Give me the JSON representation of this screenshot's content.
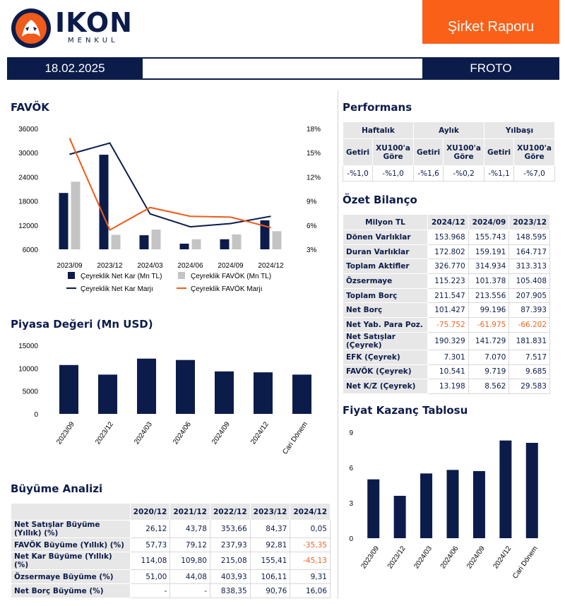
{
  "brand": {
    "name": "IKON",
    "sub": "MENKUL"
  },
  "header": {
    "report_label": "Şirket Raporu",
    "date": "18.02.2025",
    "ticker": "FROTO"
  },
  "colors": {
    "navy": "#0c1c4a",
    "orange": "#f05a1a",
    "gray": "#c4c4c4"
  },
  "favok": {
    "title": "FAVÖK",
    "chart_data": {
      "type": "bar",
      "categories": [
        "2023/09",
        "2023/12",
        "2024/03",
        "2024/06",
        "2024/09",
        "2024/12"
      ],
      "series": [
        {
          "name": "Çeyreklik Net Kar (Mn TL)",
          "type": "bar",
          "axis": "left",
          "values": [
            20000,
            29500,
            9500,
            7400,
            8500,
            13200
          ]
        },
        {
          "name": "Çeyreklik FAVÖK (Mn TL)",
          "type": "bar",
          "axis": "left",
          "values": [
            22800,
            9600,
            10900,
            8500,
            9700,
            10500
          ]
        },
        {
          "name": "Çeyreklik Net Kar Marjı",
          "type": "line",
          "axis": "right",
          "values": [
            14.8,
            16.2,
            7.4,
            5.8,
            6.2,
            7.1
          ]
        },
        {
          "name": "Çeyreklik FAVÖK Marjı",
          "type": "line",
          "axis": "right",
          "values": [
            16.8,
            5.4,
            8.2,
            7.1,
            7.0,
            5.7
          ]
        }
      ],
      "ylim_left": [
        6000,
        36000
      ],
      "yticks_left": [
        "36000",
        "30000",
        "24000",
        "18000",
        "12000",
        "6000"
      ],
      "ylim_right": [
        3,
        18
      ],
      "yticks_right": [
        "18%",
        "15%",
        "12%",
        "9%",
        "6%",
        "3%"
      ],
      "legend": "bottom"
    }
  },
  "piyasa": {
    "title": "Piyasa Değeri (Mn USD)",
    "chart_data": {
      "type": "bar",
      "categories": [
        "2023/09",
        "2023/12",
        "2024/03",
        "2024/06",
        "2024/09",
        "2024/12",
        "Cari Dönem"
      ],
      "values": [
        10700,
        8600,
        12100,
        11800,
        9300,
        9100,
        8600
      ],
      "ylim": [
        0,
        15000
      ],
      "yticks": [
        "15000",
        "10000",
        "5000",
        "0"
      ]
    }
  },
  "buyume": {
    "title": "Büyüme Analizi",
    "headers": [
      "2020/12",
      "2021/12",
      "2022/12",
      "2023/12",
      "2024/12"
    ],
    "rows": [
      {
        "label": "Net Satışlar Büyüme (Yıllık) (%)",
        "values": [
          "26,12",
          "43,78",
          "353,66",
          "84,37",
          "0,05"
        ]
      },
      {
        "label": "FAVÖK Büyüme (Yıllık) (%)",
        "values": [
          "57,73",
          "79,12",
          "237,93",
          "92,81",
          "-35,35"
        ]
      },
      {
        "label": "Net Kar Büyüme (Yıllık) (%)",
        "values": [
          "114,08",
          "109,80",
          "215,08",
          "155,41",
          "-45,13"
        ]
      },
      {
        "label": "Özsermaye Büyüme (%)",
        "values": [
          "51,00",
          "44,08",
          "403,93",
          "106,11",
          "9,31"
        ]
      },
      {
        "label": "Net Borç Büyüme (%)",
        "values": [
          "-",
          "-",
          "838,35",
          "90,76",
          "16,06"
        ]
      }
    ]
  },
  "performans": {
    "title": "Performans",
    "groups": [
      "Haftalık",
      "Aylık",
      "Yılbaşı"
    ],
    "sub": [
      "Getiri",
      "XU100'a Göre",
      "Getiri",
      "XU100'a Göre",
      "Getiri",
      "XU100'a Göre"
    ],
    "values": [
      "-%1,0",
      "-%1,0",
      "-%1,6",
      "-%0,2",
      "-%1,1",
      "-%7,0"
    ]
  },
  "bilanco": {
    "title": "Özet Bilanço",
    "headers": [
      "Milyon TL",
      "2024/12",
      "2024/09",
      "2023/12"
    ],
    "rows": [
      {
        "label": "Dönen Varlıklar",
        "values": [
          "153.968",
          "155.743",
          "148.595"
        ]
      },
      {
        "label": "Duran Varlıklar",
        "values": [
          "172.802",
          "159.191",
          "164.717"
        ]
      },
      {
        "label": "Toplam Aktifler",
        "values": [
          "326.770",
          "314.934",
          "313.313"
        ]
      },
      {
        "label": "Özsermaye",
        "values": [
          "115.223",
          "101.378",
          "105.408"
        ]
      },
      {
        "label": "Toplam Borç",
        "values": [
          "211.547",
          "213.556",
          "207.905"
        ]
      },
      {
        "label": "Net Borç",
        "values": [
          "101.427",
          "99.196",
          "87.393"
        ]
      },
      {
        "label": "Net Yab. Para Poz.",
        "values": [
          "-75.752",
          "-61.975",
          "-66.202"
        ]
      },
      {
        "label": "Net Satışlar (Çeyrek)",
        "values": [
          "190.329",
          "141.729",
          "181.831"
        ]
      },
      {
        "label": "EFK (Çeyrek)",
        "values": [
          "7.301",
          "7.070",
          "7.517"
        ]
      },
      {
        "label": "FAVÖK (Çeyrek)",
        "values": [
          "10.541",
          "9.719",
          "9.685"
        ]
      },
      {
        "label": "Net K/Z (Çeyrek)",
        "values": [
          "13.198",
          "8.562",
          "29.583"
        ]
      }
    ]
  },
  "fk": {
    "title": "Fiyat Kazanç Tablosu",
    "chart_data": {
      "type": "bar",
      "categories": [
        "2023/09",
        "2023/12",
        "2024/03",
        "2024/06",
        "2024/09",
        "2024/12",
        "Cari Dönem"
      ],
      "values": [
        5.0,
        3.6,
        5.5,
        5.8,
        5.7,
        8.3,
        8.1
      ],
      "ylim": [
        0,
        9
      ],
      "yticks": [
        "9",
        "6",
        "3",
        "0"
      ]
    }
  }
}
